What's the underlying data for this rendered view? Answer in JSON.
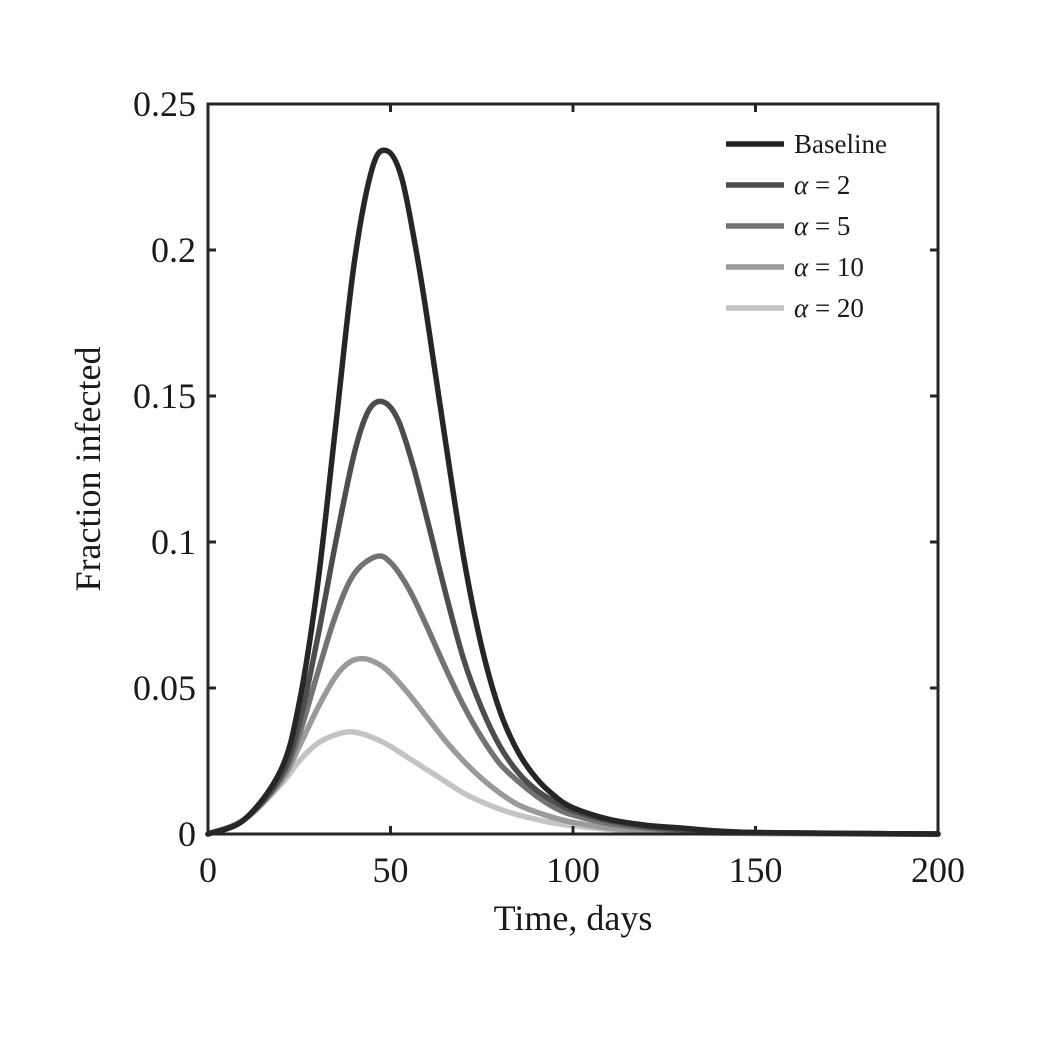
{
  "chart_data": {
    "type": "line",
    "title": "",
    "xlabel": "Time, days",
    "ylabel": "Fraction infected",
    "xlim": [
      0,
      200
    ],
    "ylim": [
      0,
      0.25
    ],
    "x_ticks": [
      0,
      50,
      100,
      150,
      200
    ],
    "x_tick_labels": [
      "0",
      "50",
      "100",
      "150",
      "200"
    ],
    "y_ticks": [
      0,
      0.05,
      0.1,
      0.15,
      0.2,
      0.25
    ],
    "y_tick_labels": [
      "0",
      "0.05",
      "0.1",
      "0.15",
      "0.2",
      "0.25"
    ],
    "grid": false,
    "legend_position": "top-right",
    "series": [
      {
        "name": "Baseline",
        "color": "#262626",
        "x": [
          0,
          10,
          20,
          25,
          30,
          35,
          40,
          45,
          49,
          53,
          57,
          60,
          65,
          70,
          75,
          80,
          85,
          90,
          95,
          100,
          110,
          120,
          130,
          140,
          150,
          175,
          200
        ],
        "y": [
          0.0,
          0.005,
          0.022,
          0.045,
          0.085,
          0.14,
          0.195,
          0.228,
          0.234,
          0.225,
          0.2,
          0.177,
          0.135,
          0.095,
          0.064,
          0.042,
          0.028,
          0.019,
          0.013,
          0.009,
          0.005,
          0.003,
          0.002,
          0.001,
          0.0005,
          0.0002,
          0.0
        ]
      },
      {
        "name": "α = 2",
        "color": "#4d4d4d",
        "x": [
          0,
          10,
          20,
          25,
          30,
          35,
          40,
          44,
          48,
          52,
          56,
          60,
          65,
          70,
          75,
          80,
          85,
          90,
          95,
          100,
          110,
          120,
          130,
          140,
          150,
          175,
          200
        ],
        "y": [
          0.0,
          0.005,
          0.02,
          0.038,
          0.067,
          0.1,
          0.13,
          0.145,
          0.148,
          0.142,
          0.127,
          0.108,
          0.083,
          0.06,
          0.043,
          0.03,
          0.021,
          0.015,
          0.011,
          0.008,
          0.0045,
          0.0025,
          0.0015,
          0.001,
          0.0005,
          0.0002,
          0.0
        ]
      },
      {
        "name": "α = 5",
        "color": "#737373",
        "x": [
          0,
          10,
          20,
          25,
          30,
          35,
          40,
          46,
          50,
          55,
          60,
          65,
          70,
          75,
          80,
          85,
          90,
          95,
          100,
          110,
          120,
          130,
          140,
          150,
          175,
          200
        ],
        "y": [
          0.0,
          0.005,
          0.019,
          0.034,
          0.055,
          0.075,
          0.089,
          0.095,
          0.093,
          0.084,
          0.071,
          0.057,
          0.044,
          0.033,
          0.024,
          0.018,
          0.013,
          0.009,
          0.0065,
          0.0035,
          0.002,
          0.0012,
          0.0007,
          0.0004,
          0.0001,
          0.0
        ]
      },
      {
        "name": "α = 10",
        "color": "#9a9a9a",
        "x": [
          0,
          10,
          20,
          25,
          30,
          35,
          39,
          43,
          47,
          50,
          55,
          60,
          65,
          70,
          75,
          80,
          85,
          90,
          95,
          100,
          110,
          120,
          130,
          140,
          150,
          175,
          200
        ],
        "y": [
          0.0,
          0.005,
          0.018,
          0.03,
          0.043,
          0.054,
          0.059,
          0.06,
          0.058,
          0.055,
          0.048,
          0.04,
          0.032,
          0.025,
          0.019,
          0.014,
          0.01,
          0.0075,
          0.0055,
          0.004,
          0.002,
          0.0012,
          0.0007,
          0.0004,
          0.0002,
          0.0001,
          0.0
        ]
      },
      {
        "name": "α = 20",
        "color": "#c4c4c4",
        "x": [
          0,
          10,
          20,
          25,
          30,
          35,
          39,
          43,
          47,
          50,
          55,
          60,
          65,
          70,
          75,
          80,
          85,
          90,
          95,
          100,
          110,
          120,
          130,
          140,
          150,
          175,
          200
        ],
        "y": [
          0.0,
          0.005,
          0.017,
          0.025,
          0.031,
          0.034,
          0.035,
          0.034,
          0.032,
          0.03,
          0.026,
          0.022,
          0.018,
          0.014,
          0.011,
          0.0085,
          0.0065,
          0.005,
          0.0037,
          0.0028,
          0.0016,
          0.0009,
          0.0005,
          0.0003,
          0.0002,
          0.0001,
          0.0
        ]
      }
    ]
  }
}
